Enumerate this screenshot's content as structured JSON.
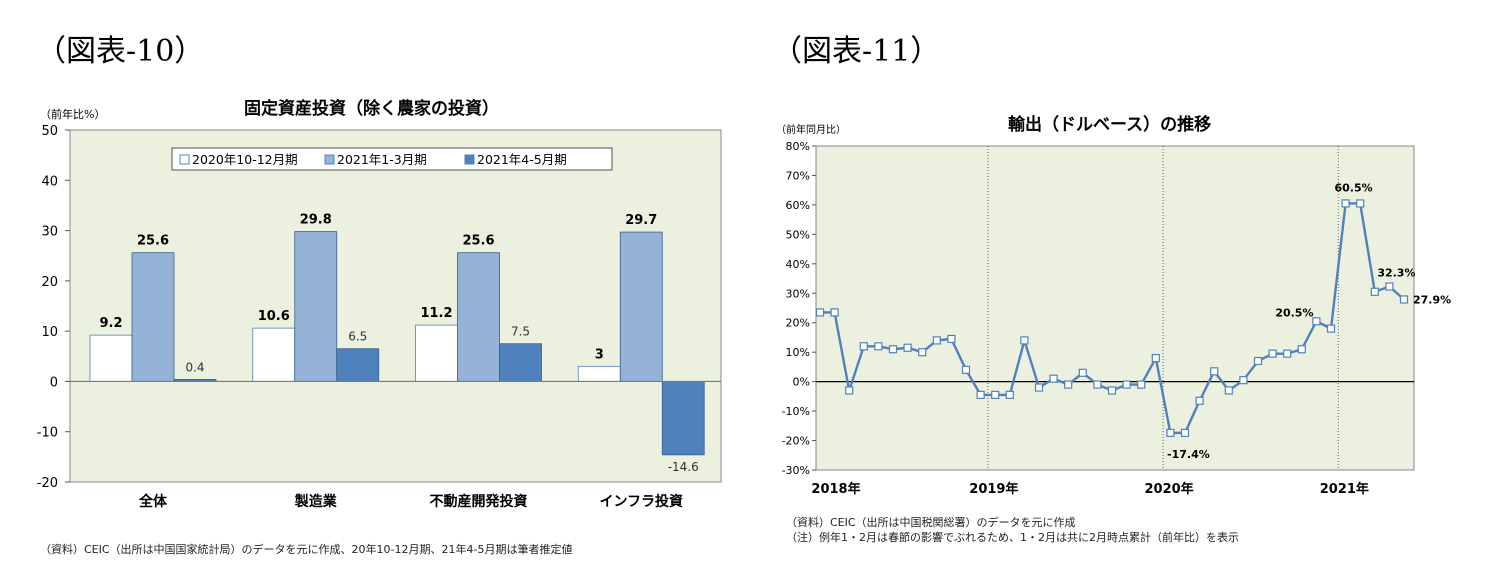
{
  "page": {
    "fig10_label": "（図表-10）",
    "fig11_label": "（図表-11）"
  },
  "chart_data": [
    {
      "type": "bar",
      "title": "固定資産投資（除く農家の投資）",
      "unit_label": "（前年比%）",
      "categories": [
        "全体",
        "製造業",
        "不動産開発投資",
        "インフラ投資"
      ],
      "series": [
        {
          "name": "2020年10-12月期",
          "values": [
            9.2,
            10.6,
            11.2,
            3.0
          ],
          "color": "#ffffff"
        },
        {
          "name": "2021年1-3月期",
          "values": [
            25.6,
            29.8,
            25.6,
            29.7
          ],
          "color": "#95b3d7"
        },
        {
          "name": "2021年4-5月期",
          "values": [
            0.4,
            6.5,
            7.5,
            -14.6
          ],
          "color": "#4f81bd"
        }
      ],
      "ylim": [
        -20,
        50
      ],
      "yticks": [
        "50",
        "40",
        "30",
        "20",
        "10",
        "0",
        "-10",
        "-20"
      ],
      "legend": "top",
      "grid": false,
      "plot_bg": "#ebf1de",
      "note": "（資料）CEIC（出所は中国国家統計局）のデータを元に作成、20年10-12月期、21年4-5月期は筆者推定値"
    },
    {
      "type": "line",
      "title": "輸出（ドルベース）の推移",
      "unit_label": "（前年同月比）",
      "x": [
        "2018-01",
        "2018-02",
        "2018-03",
        "2018-04",
        "2018-05",
        "2018-06",
        "2018-07",
        "2018-08",
        "2018-09",
        "2018-10",
        "2018-11",
        "2018-12",
        "2019-01",
        "2019-02",
        "2019-03",
        "2019-04",
        "2019-05",
        "2019-06",
        "2019-07",
        "2019-08",
        "2019-09",
        "2019-10",
        "2019-11",
        "2019-12",
        "2020-01",
        "2020-02",
        "2020-03",
        "2020-04",
        "2020-05",
        "2020-06",
        "2020-07",
        "2020-08",
        "2020-09",
        "2020-10",
        "2020-11",
        "2020-12",
        "2021-01",
        "2021-02",
        "2021-03",
        "2021-04",
        "2021-05"
      ],
      "series": [
        {
          "values": [
            23.5,
            23.5,
            -3.0,
            12.0,
            12.0,
            11.0,
            11.5,
            10.0,
            14.0,
            14.5,
            4.0,
            -4.5,
            -4.5,
            -4.5,
            14.0,
            -2.0,
            1.0,
            -1.0,
            3.0,
            -1.0,
            -3.0,
            -1.0,
            -1.0,
            8.0,
            -17.4,
            -17.4,
            -6.5,
            3.5,
            -3.0,
            0.5,
            7.0,
            9.5,
            9.5,
            11.0,
            20.5,
            18.0,
            60.5,
            60.5,
            30.5,
            32.3,
            27.9
          ],
          "color": "#4f81bd"
        }
      ],
      "year_labels": [
        "2018年",
        "2019年",
        "2020年",
        "2021年"
      ],
      "yticks": [
        "80%",
        "70%",
        "60%",
        "50%",
        "40%",
        "30%",
        "20%",
        "10%",
        "0%",
        "-10%",
        "-20%",
        "-30%"
      ],
      "ylim": [
        -30,
        80
      ],
      "annotations": [
        "60.5%",
        "32.3%",
        "27.9%",
        "20.5%",
        "-17.4%"
      ],
      "plot_bg": "#ebf1de",
      "note1": "（資料）CEIC（出所は中国税関総署）のデータを元に作成",
      "note2": "（注）例年1・2月は春節の影響でぶれるため、1・2月は共に2月時点累計（前年比）を表示"
    }
  ]
}
